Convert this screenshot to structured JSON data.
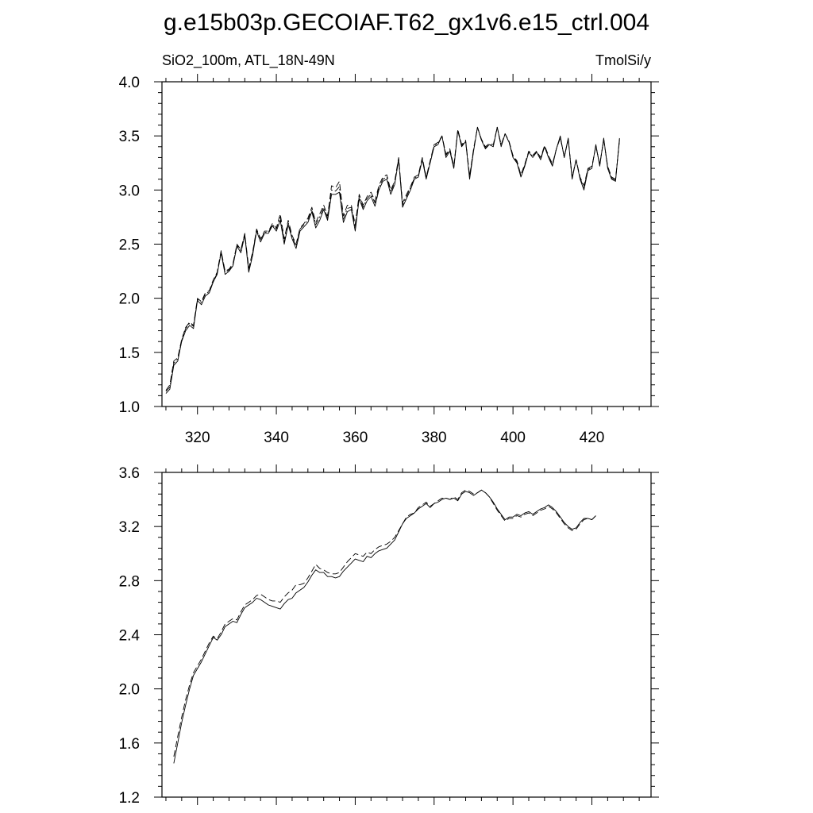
{
  "title": "g.e15b03p.GECOIAF.T62_gx1v6.e15_ctrl.004",
  "left_label": "SiO2_100m, ATL_18N-49N",
  "right_label": "TmolSi/y",
  "chart_data": [
    {
      "type": "line",
      "panel": "top",
      "xlim": [
        311,
        435
      ],
      "ylim": [
        1.0,
        4.0
      ],
      "xticks": [
        320,
        340,
        360,
        380,
        400,
        420
      ],
      "xtick_labels": [
        "320",
        "340",
        "360",
        "380",
        "400",
        "420"
      ],
      "yticks": [
        1.0,
        1.5,
        2.0,
        2.5,
        3.0,
        3.5,
        4.0
      ],
      "ytick_labels": [
        "1.0",
        "1.5",
        "2.0",
        "2.5",
        "3.0",
        "3.5",
        "4.0"
      ],
      "series_x_start": 312,
      "series": [
        {
          "style": "solid",
          "values": [
            1.12,
            1.16,
            1.38,
            1.42,
            1.6,
            1.7,
            1.75,
            1.72,
            1.98,
            1.94,
            2.02,
            2.05,
            2.15,
            2.22,
            2.42,
            2.22,
            2.25,
            2.3,
            2.48,
            2.42,
            2.58,
            2.24,
            2.4,
            2.62,
            2.52,
            2.6,
            2.6,
            2.67,
            2.62,
            2.72,
            2.5,
            2.68,
            2.55,
            2.46,
            2.62,
            2.66,
            2.7,
            2.8,
            2.65,
            2.72,
            2.82,
            2.72,
            2.96,
            2.96,
            2.98,
            2.7,
            2.8,
            2.82,
            2.62,
            2.92,
            2.82,
            2.9,
            2.94,
            2.85,
            3.0,
            3.08,
            3.1,
            2.96,
            3.05,
            3.28,
            2.84,
            2.92,
            3.0,
            3.1,
            3.12,
            3.28,
            3.1,
            3.25,
            3.4,
            3.42,
            3.5,
            3.3,
            3.36,
            3.2,
            3.55,
            3.4,
            3.45,
            3.1,
            3.36,
            3.58,
            3.46,
            3.38,
            3.42,
            3.4,
            3.58,
            3.4,
            3.52,
            3.44,
            3.3,
            3.25,
            3.12,
            3.22,
            3.35,
            3.3,
            3.35,
            3.28,
            3.4,
            3.3,
            3.22,
            3.38,
            3.5,
            3.3,
            3.48,
            3.1,
            3.28,
            3.1,
            3.0,
            3.18,
            3.2,
            3.42,
            3.22,
            3.48,
            3.2,
            3.1,
            3.08,
            3.48
          ]
        },
        {
          "style": "dashed",
          "values": [
            1.15,
            1.2,
            1.42,
            1.45,
            1.62,
            1.73,
            1.78,
            1.75,
            2.0,
            1.97,
            2.05,
            2.07,
            2.17,
            2.24,
            2.44,
            2.25,
            2.27,
            2.32,
            2.5,
            2.45,
            2.6,
            2.28,
            2.43,
            2.64,
            2.55,
            2.62,
            2.62,
            2.69,
            2.65,
            2.78,
            2.55,
            2.72,
            2.58,
            2.5,
            2.65,
            2.69,
            2.74,
            2.84,
            2.7,
            2.78,
            2.86,
            2.76,
            3.04,
            3.02,
            3.08,
            2.76,
            2.86,
            2.86,
            2.68,
            2.96,
            2.86,
            2.94,
            2.98,
            2.9,
            3.04,
            3.12,
            3.14,
            3.0,
            3.08,
            3.3,
            2.88,
            2.96,
            3.03,
            3.12,
            3.14,
            3.3,
            3.12,
            3.27,
            3.42,
            3.44,
            3.5,
            3.33,
            3.38,
            3.22,
            3.56,
            3.42,
            3.46,
            3.13,
            3.38,
            3.58,
            3.47,
            3.4,
            3.43,
            3.42,
            3.58,
            3.42,
            3.52,
            3.45,
            3.32,
            3.27,
            3.14,
            3.24,
            3.36,
            3.32,
            3.36,
            3.3,
            3.41,
            3.32,
            3.24,
            3.38,
            3.48,
            3.31,
            3.47,
            3.12,
            3.28,
            3.12,
            3.04,
            3.2,
            3.22,
            3.4,
            3.24,
            3.46,
            3.22,
            3.12,
            3.1,
            3.46
          ]
        },
        {
          "style": "dashdot",
          "values": [
            1.14,
            1.18,
            1.4,
            1.44,
            1.61,
            1.72,
            1.77,
            1.74,
            1.99,
            1.96,
            2.04,
            2.06,
            2.16,
            2.23,
            2.43,
            2.24,
            2.26,
            2.31,
            2.49,
            2.44,
            2.59,
            2.26,
            2.42,
            2.63,
            2.54,
            2.61,
            2.61,
            2.68,
            2.64,
            2.75,
            2.52,
            2.7,
            2.57,
            2.48,
            2.64,
            2.68,
            2.72,
            2.82,
            2.68,
            2.75,
            2.84,
            2.74,
            3.0,
            2.99,
            3.03,
            2.73,
            2.83,
            2.84,
            2.65,
            2.94,
            2.84,
            2.92,
            2.96,
            2.88,
            3.02,
            3.1,
            3.12,
            2.98,
            3.07,
            3.29,
            2.86,
            2.94,
            3.02,
            3.11,
            3.13,
            3.29,
            3.11,
            3.26,
            3.41,
            3.43,
            3.5,
            3.32,
            3.37,
            3.21,
            3.55,
            3.41,
            3.45,
            3.12,
            3.37,
            3.58,
            3.46,
            3.39,
            3.42,
            3.41,
            3.58,
            3.41,
            3.52,
            3.44,
            3.31,
            3.26,
            3.13,
            3.23,
            3.35,
            3.31,
            3.35,
            3.29,
            3.4,
            3.31,
            3.23,
            3.38,
            3.49,
            3.3,
            3.47,
            3.11,
            3.28,
            3.11,
            3.02,
            3.19,
            3.21,
            3.41,
            3.23,
            3.47,
            3.21,
            3.11,
            3.09,
            3.47
          ]
        }
      ]
    },
    {
      "type": "line",
      "panel": "bottom",
      "xlim": [
        311,
        435
      ],
      "ylim": [
        1.2,
        3.6
      ],
      "xticks": [
        320,
        340,
        360,
        380,
        400,
        420
      ],
      "yticks": [
        1.2,
        1.6,
        2.0,
        2.4,
        2.8,
        3.2,
        3.6
      ],
      "ytick_labels": [
        "1.2",
        "1.6",
        "2.0",
        "2.4",
        "2.8",
        "3.2",
        "3.6"
      ],
      "series_x_start": 314,
      "series": [
        {
          "style": "solid",
          "values": [
            1.45,
            1.6,
            1.75,
            1.88,
            2.0,
            2.1,
            2.15,
            2.2,
            2.26,
            2.32,
            2.38,
            2.36,
            2.4,
            2.46,
            2.48,
            2.5,
            2.49,
            2.55,
            2.6,
            2.62,
            2.64,
            2.67,
            2.66,
            2.64,
            2.62,
            2.61,
            2.6,
            2.59,
            2.63,
            2.66,
            2.67,
            2.71,
            2.73,
            2.75,
            2.79,
            2.84,
            2.88,
            2.86,
            2.86,
            2.83,
            2.83,
            2.82,
            2.83,
            2.87,
            2.9,
            2.93,
            2.96,
            2.95,
            2.94,
            2.98,
            2.97,
            3.0,
            3.02,
            3.03,
            3.04,
            3.07,
            3.1,
            3.16,
            3.22,
            3.26,
            3.28,
            3.3,
            3.33,
            3.35,
            3.37,
            3.34,
            3.37,
            3.38,
            3.4,
            3.41,
            3.4,
            3.41,
            3.39,
            3.44,
            3.46,
            3.45,
            3.43,
            3.45,
            3.47,
            3.45,
            3.42,
            3.38,
            3.33,
            3.29,
            3.25,
            3.27,
            3.27,
            3.29,
            3.28,
            3.3,
            3.31,
            3.29,
            3.31,
            3.33,
            3.34,
            3.36,
            3.34,
            3.31,
            3.27,
            3.23,
            3.2,
            3.18,
            3.19,
            3.23,
            3.26,
            3.26,
            3.25,
            3.28
          ]
        },
        {
          "style": "dashed",
          "values": [
            1.5,
            1.65,
            1.79,
            1.92,
            2.03,
            2.12,
            2.17,
            2.22,
            2.28,
            2.34,
            2.39,
            2.37,
            2.42,
            2.48,
            2.5,
            2.52,
            2.51,
            2.57,
            2.62,
            2.64,
            2.66,
            2.69,
            2.7,
            2.68,
            2.66,
            2.65,
            2.65,
            2.64,
            2.68,
            2.71,
            2.73,
            2.77,
            2.77,
            2.78,
            2.82,
            2.87,
            2.92,
            2.89,
            2.88,
            2.86,
            2.85,
            2.85,
            2.86,
            2.9,
            2.94,
            2.97,
            3.0,
            2.99,
            2.98,
            3.01,
            3.0,
            3.03,
            3.05,
            3.06,
            3.07,
            3.09,
            3.12,
            3.17,
            3.22,
            3.27,
            3.29,
            3.3,
            3.34,
            3.36,
            3.38,
            3.35,
            3.37,
            3.39,
            3.41,
            3.41,
            3.4,
            3.42,
            3.4,
            3.45,
            3.47,
            3.46,
            3.44,
            3.45,
            3.47,
            3.45,
            3.42,
            3.37,
            3.32,
            3.28,
            3.24,
            3.26,
            3.26,
            3.28,
            3.27,
            3.29,
            3.3,
            3.28,
            3.3,
            3.32,
            3.33,
            3.35,
            3.33,
            3.3,
            3.26,
            3.22,
            3.19,
            3.17,
            3.18,
            3.22,
            3.25,
            3.26,
            3.25,
            3.28
          ]
        }
      ]
    }
  ]
}
